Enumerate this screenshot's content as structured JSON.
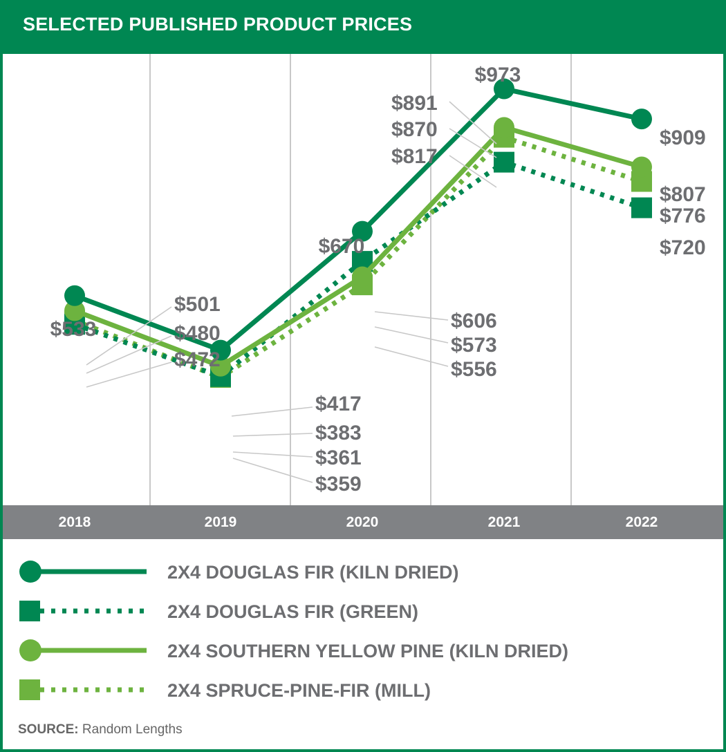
{
  "title": "SELECTED PUBLISHED PRODUCT PRICES",
  "source_label": "SOURCE:",
  "source_value": "Random Lengths",
  "colors": {
    "dark_green": "#008752",
    "light_green": "#6db33f",
    "axis_bar": "#808285",
    "label_gray": "#6d6e71",
    "leader": "#c8c8c8",
    "grid": "#c8c8c8"
  },
  "chart_data": {
    "type": "line",
    "title": "SELECTED PUBLISHED PRODUCT PRICES",
    "xlabel": "",
    "ylabel": "",
    "categories": [
      "2018",
      "2019",
      "2020",
      "2021",
      "2022"
    ],
    "grid": "vertical",
    "legend_position": "bottom",
    "series": [
      {
        "name": "2X4 DOUGLAS FIR (KILN DRIED)",
        "values": [
          533,
          417,
          670,
          973,
          909
        ],
        "labels": [
          "$533",
          "$417",
          "$670",
          "$973",
          "$909"
        ],
        "color": "#008752",
        "marker": "circle",
        "line": "solid"
      },
      {
        "name": "2X4 DOUGLAS FIR (GREEN)",
        "values": [
          472,
          361,
          606,
          817,
          720
        ],
        "labels": [
          "$472",
          "$361",
          "$606",
          "$817",
          "$720"
        ],
        "color": "#008752",
        "marker": "square",
        "line": "dotted"
      },
      {
        "name": "2X4 SOUTHERN YELLOW PINE (KILN DRIED)",
        "values": [
          501,
          383,
          573,
          891,
          807
        ],
        "labels": [
          "$501",
          "$383",
          "$573",
          "$891",
          "$807"
        ],
        "color": "#6db33f",
        "marker": "circle",
        "line": "solid"
      },
      {
        "name": "2X4 SPRUCE-PINE-FIR (MILL)",
        "values": [
          480,
          359,
          556,
          870,
          776
        ],
        "labels": [
          "$480",
          "$359",
          "$556",
          "$870",
          "$776"
        ],
        "color": "#6db33f",
        "marker": "square",
        "line": "dotted"
      }
    ]
  }
}
